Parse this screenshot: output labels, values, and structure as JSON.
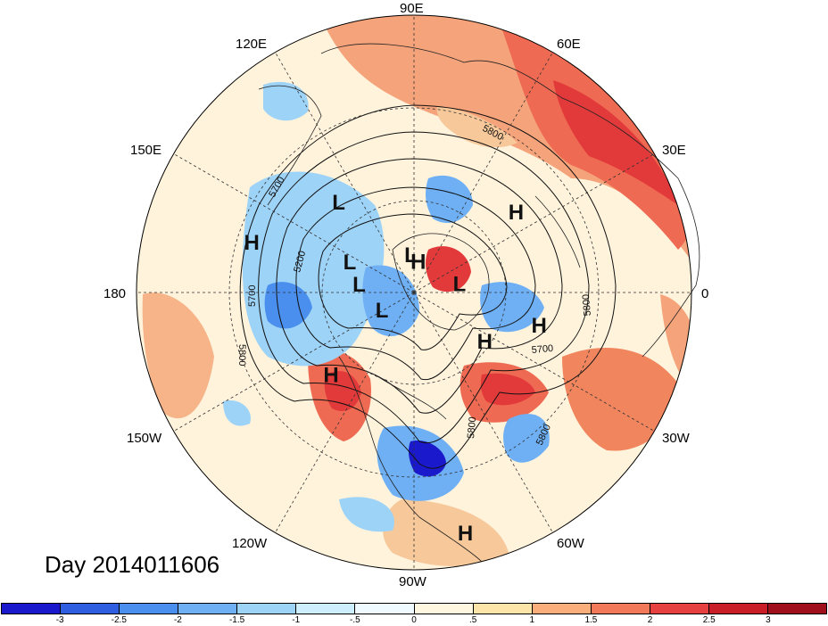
{
  "title": "Day 2014011606",
  "longitude_labels": [
    "90E",
    "60E",
    "30E",
    "0",
    "30W",
    "60W",
    "90W",
    "120W",
    "150W",
    "180",
    "150E",
    "120E"
  ],
  "contour_labels": [
    "5800",
    "5700",
    "5200",
    "5700",
    "5800",
    "5800",
    "5700",
    "5800",
    "5800"
  ],
  "pressure_centers": [
    {
      "label": "L",
      "lon_lat": [
        130,
        52
      ]
    },
    {
      "label": "H",
      "lon_lat": [
        38,
        48
      ]
    },
    {
      "label": "L",
      "lon_lat": [
        95,
        78
      ]
    },
    {
      "label": "H",
      "lon_lat": [
        163,
        35
      ]
    },
    {
      "label": "L",
      "lon_lat": [
        155,
        67
      ]
    },
    {
      "label": "H",
      "lon_lat": [
        82,
        80
      ]
    },
    {
      "label": "L",
      "lon_lat": [
        172,
        72
      ]
    },
    {
      "label": "L",
      "lon_lat": [
        -150,
        78
      ]
    },
    {
      "label": "L",
      "lon_lat": [
        10,
        75
      ]
    },
    {
      "label": "H",
      "lon_lat": [
        -135,
        52
      ]
    },
    {
      "label": "H",
      "lon_lat": [
        -35,
        62
      ]
    },
    {
      "label": "H",
      "lon_lat": [
        -15,
        48
      ]
    },
    {
      "label": "H",
      "lon_lat": [
        -78,
        10
      ]
    }
  ],
  "colorbar": {
    "tick_labels": [
      "-3",
      "-2.5",
      "-2",
      "-1.5",
      "-1",
      "-.5",
      "0",
      ".5",
      "1",
      "1.5",
      "2",
      "2.5",
      "3"
    ],
    "colors": [
      "#1a1acc",
      "#2f5fe0",
      "#4a8fee",
      "#6fb0f5",
      "#9ed3f8",
      "#cdeefc",
      "#eefaff",
      "#fff7df",
      "#fde4a8",
      "#f9ae7c",
      "#f27a5a",
      "#e64040",
      "#c91e28",
      "#a0101c"
    ]
  }
}
